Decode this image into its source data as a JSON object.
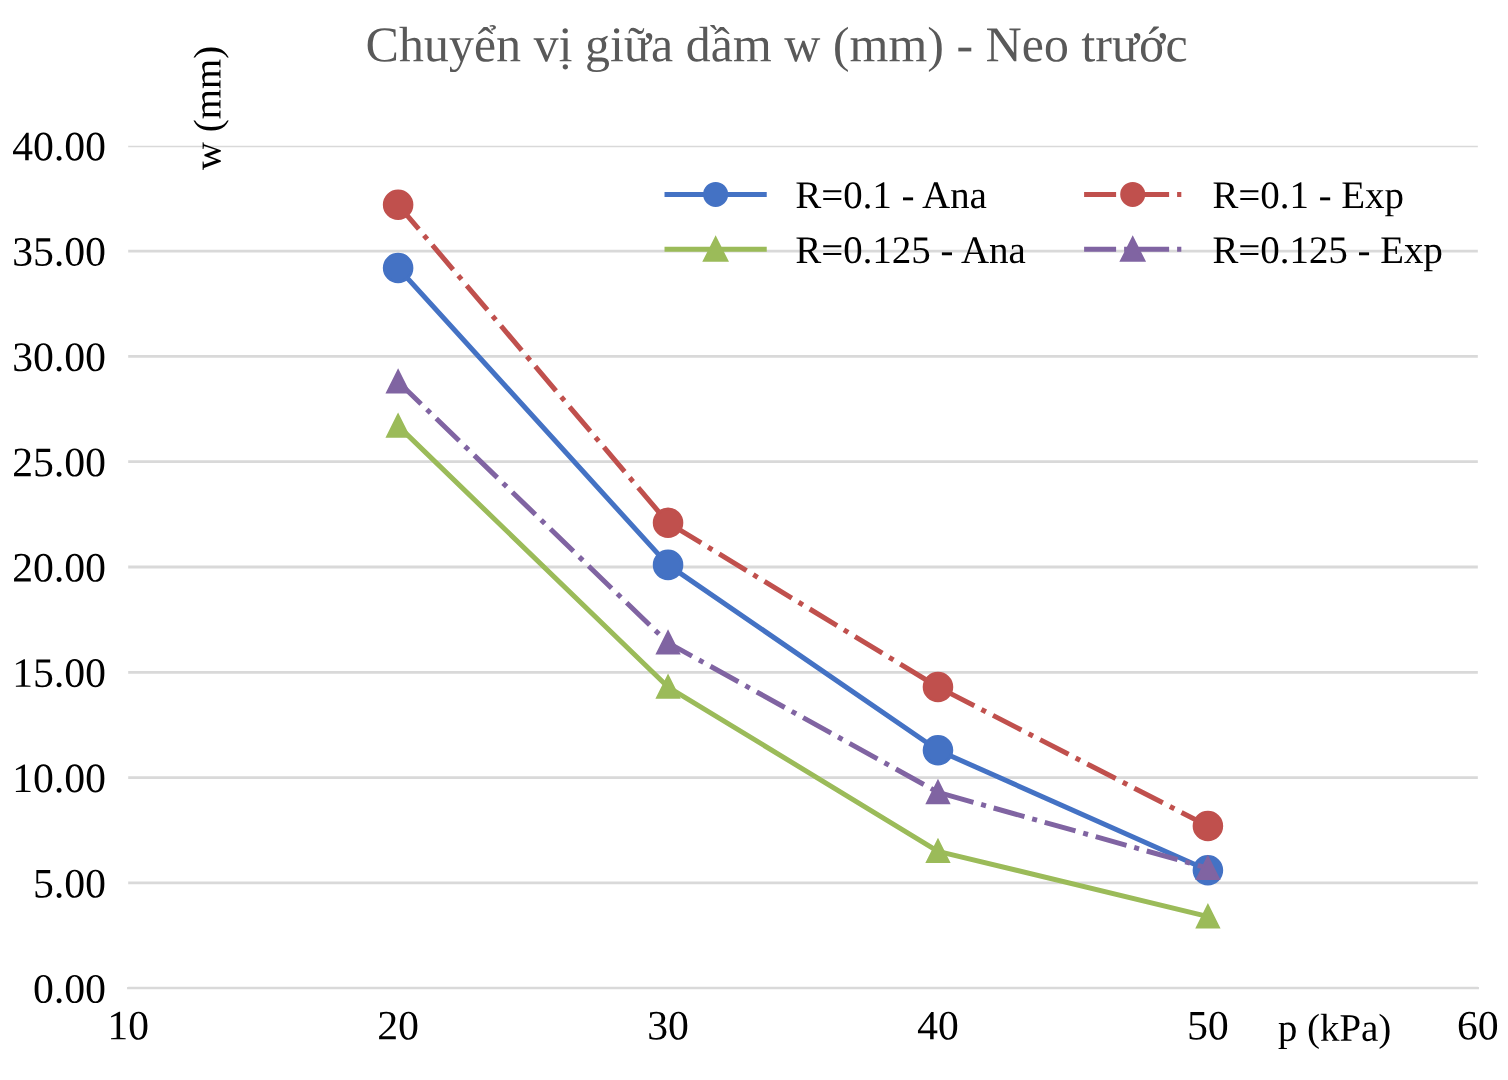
{
  "chart_data": {
    "type": "line",
    "title": "Chuyển vị giữa dầm w (mm) - Neo trước",
    "xlabel": "p (kPa)",
    "ylabel": "w (mm)",
    "x": [
      20,
      30,
      40,
      50
    ],
    "series": [
      {
        "name": "R=0.1 - Ana",
        "color": "#4472c4",
        "values": [
          34.2,
          20.1,
          11.3,
          5.6
        ],
        "marker": "circle",
        "line_style": "solid"
      },
      {
        "name": "R=0.1 - Exp",
        "color": "#c0504d",
        "values": [
          37.2,
          22.1,
          14.3,
          7.7
        ],
        "marker": "circle",
        "line_style": "dashed"
      },
      {
        "name": "R=0.125 - Ana",
        "color": "#9bbb59",
        "values": [
          26.7,
          14.3,
          6.5,
          3.4
        ],
        "marker": "triangle",
        "line_style": "solid"
      },
      {
        "name": "R=0.125 - Exp",
        "color": "#8064a2",
        "values": [
          28.8,
          16.4,
          9.3,
          5.7
        ],
        "marker": "triangle",
        "line_style": "dashed"
      }
    ],
    "xlim": [
      10,
      60
    ],
    "xticks": [
      10,
      20,
      30,
      40,
      50,
      60
    ],
    "ylim": [
      0,
      40
    ],
    "yticks": [
      {
        "value": 0,
        "label": "0.00"
      },
      {
        "value": 5,
        "label": "5.00"
      },
      {
        "value": 10,
        "label": "10.00"
      },
      {
        "value": 15,
        "label": "15.00"
      },
      {
        "value": 20,
        "label": "20.00"
      },
      {
        "value": 25,
        "label": "25.00"
      },
      {
        "value": 30,
        "label": "30.00"
      },
      {
        "value": 35,
        "label": "35.00"
      },
      {
        "value": 40,
        "label": "40.00"
      }
    ],
    "grid": "y",
    "legend": "top right"
  }
}
